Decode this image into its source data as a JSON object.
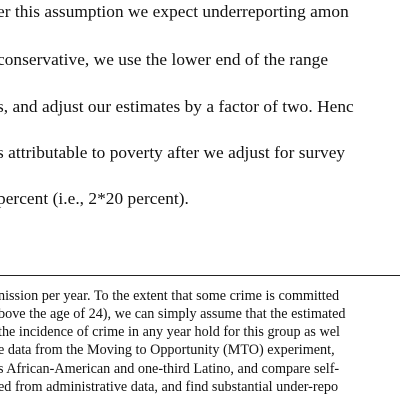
{
  "body": {
    "lines": [
      "er this assumption we expect underreporting amon",
      "conservative, we use the lower end of the range",
      "s, and adjust our estimates by a factor of two. Henc",
      "s attributable to poverty after we adjust for survey",
      "percent (i.e., 2*20 percent)."
    ]
  },
  "footnotes": {
    "lines": [
      "nission per year. To the extent that some crime is committed",
      "bove the age of 24), we can simply assume that the estimated",
      " the incidence of crime in any year hold for this group as wel",
      "e data from the Moving to Opportunity (MTO) experiment,",
      "s African-American and one-third Latino, and compare self-",
      "ed from administrative data, and find substantial under-repo"
    ]
  }
}
